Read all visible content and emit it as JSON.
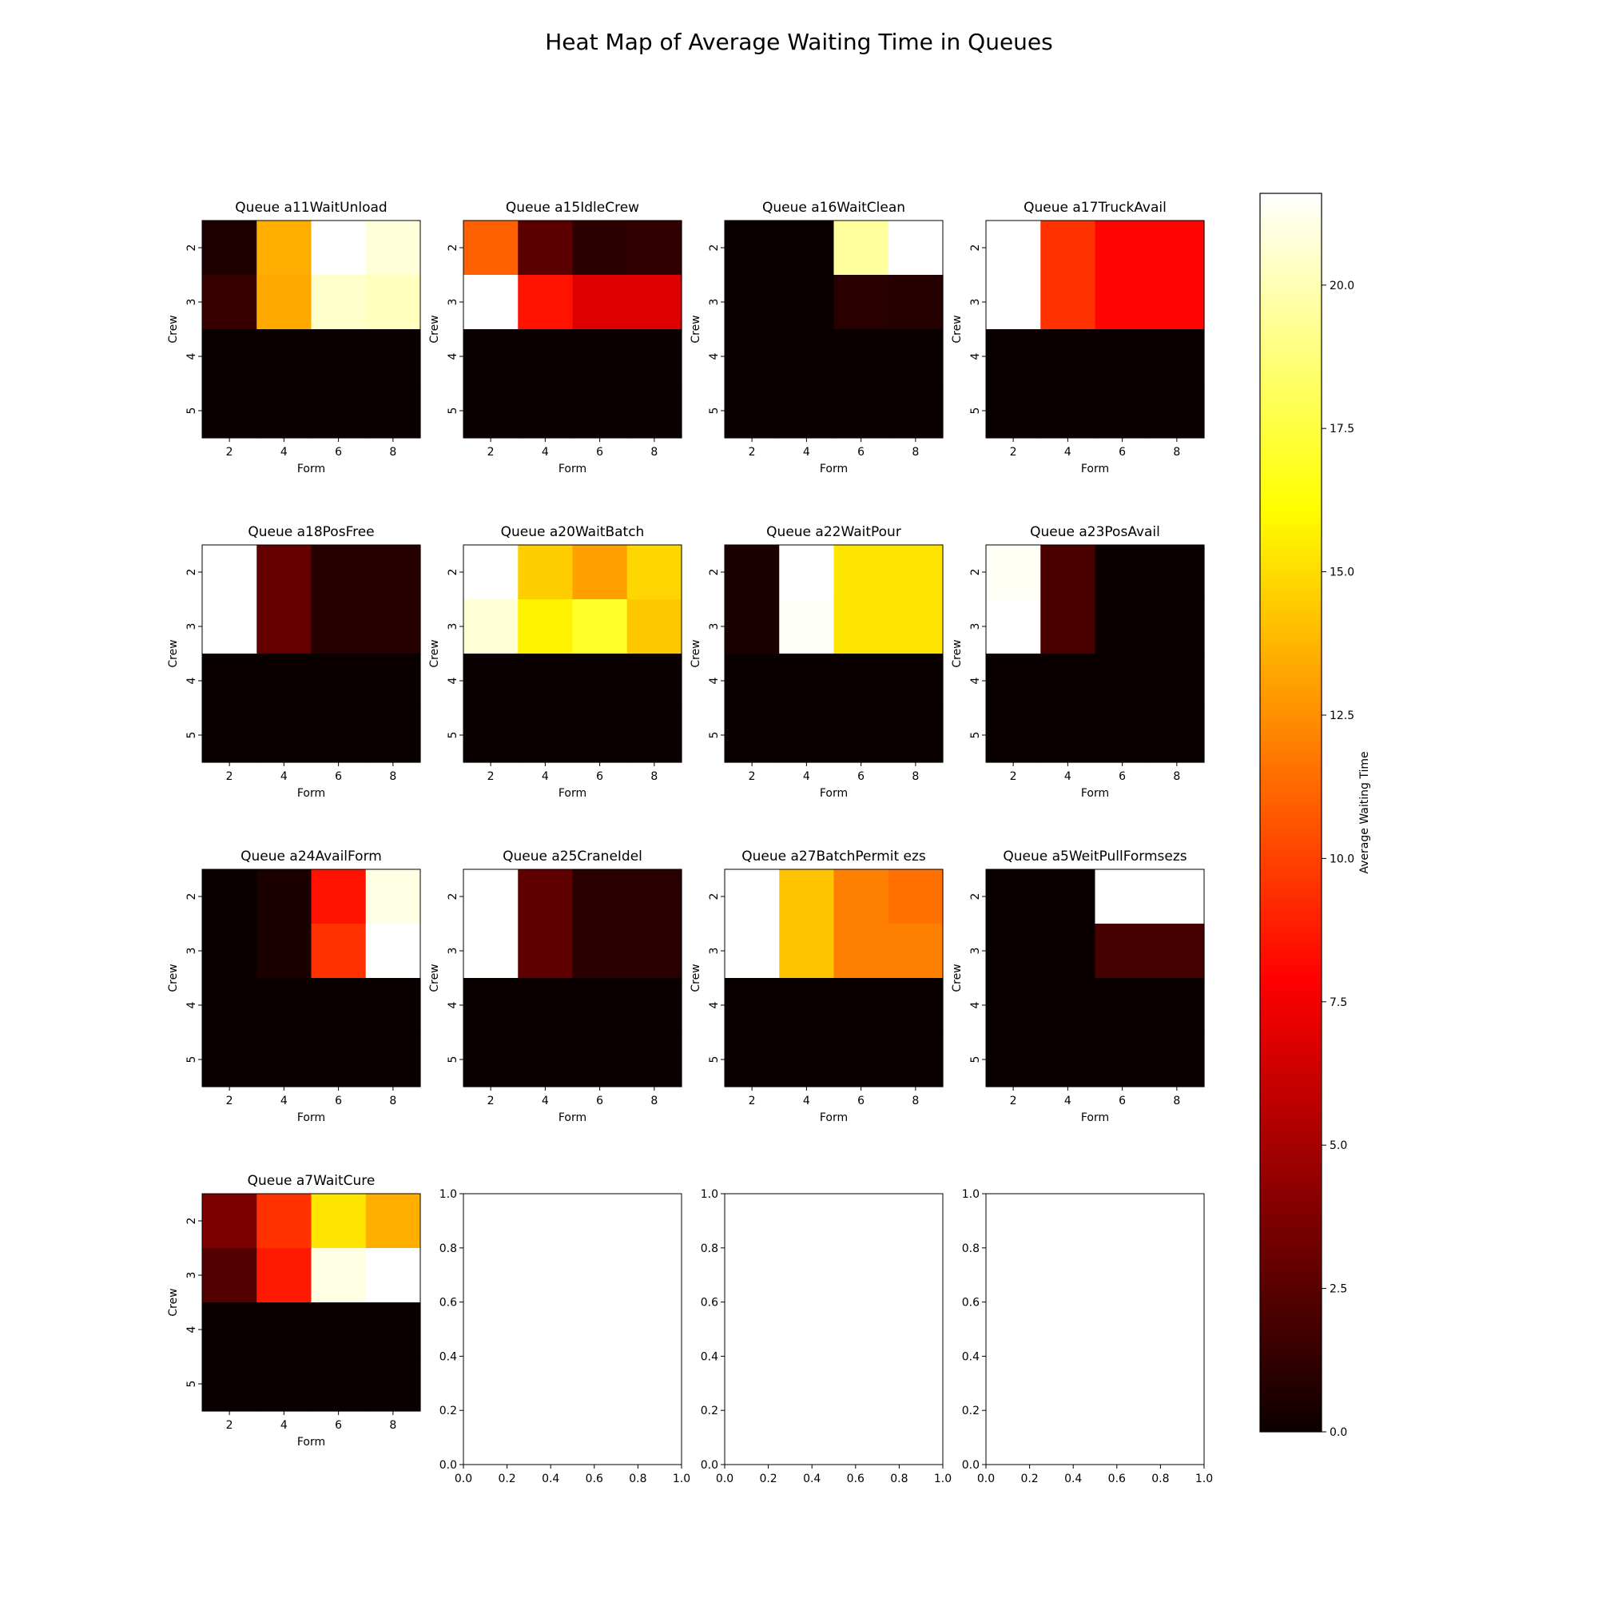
{
  "chart_data": {
    "type": "heatmap",
    "title": "Heat Map of Average Waiting Time in Queues",
    "xlabel": "Form",
    "ylabel": "Crew",
    "x_categories": [
      2,
      4,
      6,
      8
    ],
    "y_categories": [
      2,
      3,
      4,
      5
    ],
    "colormap": "hot",
    "vmin": 0,
    "vmax": 21.6,
    "colorbar": {
      "label": "Average Waiting Time",
      "ticks": [
        "0.0",
        "2.5",
        "5.0",
        "7.5",
        "10.0",
        "12.5",
        "15.0",
        "17.5",
        "20.0"
      ]
    },
    "panels": [
      {
        "title": "Queue a11WaitUnload",
        "values": [
          [
            0.6,
            13.5,
            21.6,
            20.8
          ],
          [
            1.4,
            13.3,
            20.5,
            20.2
          ],
          [
            0,
            0,
            0,
            0
          ],
          [
            0,
            0,
            0,
            0
          ]
        ]
      },
      {
        "title": "Queue a15IdleCrew",
        "values": [
          [
            11.0,
            2.5,
            1.0,
            1.2
          ],
          [
            21.6,
            8.5,
            6.5,
            6.5
          ],
          [
            0,
            0,
            0,
            0
          ],
          [
            0,
            0,
            0,
            0
          ]
        ]
      },
      {
        "title": "Queue a16WaitClean",
        "values": [
          [
            0,
            0,
            19.5,
            21.6
          ],
          [
            0,
            0,
            0.9,
            0.8
          ],
          [
            0,
            0,
            0,
            0
          ],
          [
            0,
            0,
            0,
            0
          ]
        ]
      },
      {
        "title": "Queue a17TruckAvail",
        "values": [
          [
            21.6,
            9.5,
            8.0,
            8.0
          ],
          [
            21.6,
            9.5,
            8.0,
            8.0
          ],
          [
            0,
            0,
            0,
            0
          ],
          [
            0,
            0,
            0,
            0
          ]
        ]
      },
      {
        "title": "Queue a18PosFree",
        "values": [
          [
            21.6,
            2.8,
            0.8,
            0.8
          ],
          [
            21.6,
            2.8,
            0.8,
            0.8
          ],
          [
            0,
            0,
            0,
            0
          ],
          [
            0,
            0,
            0,
            0
          ]
        ]
      },
      {
        "title": "Queue a20WaitBatch",
        "values": [
          [
            21.6,
            14.5,
            13.0,
            14.8
          ],
          [
            20.7,
            15.7,
            17.0,
            14.3
          ],
          [
            0,
            0,
            0,
            0
          ],
          [
            0,
            0,
            0,
            0
          ]
        ]
      },
      {
        "title": "Queue a22WaitPour",
        "values": [
          [
            0.5,
            21.6,
            15.3,
            15.3
          ],
          [
            0.5,
            21.5,
            15.3,
            15.3
          ],
          [
            0,
            0,
            0,
            0
          ],
          [
            0,
            0,
            0,
            0
          ]
        ]
      },
      {
        "title": "Queue a23PosAvail",
        "values": [
          [
            21.4,
            2.0,
            0,
            0
          ],
          [
            21.6,
            2.0,
            0,
            0
          ],
          [
            0,
            0,
            0,
            0
          ],
          [
            0,
            0,
            0,
            0
          ]
        ]
      },
      {
        "title": "Queue a24AvailForm",
        "values": [
          [
            0,
            0.5,
            8.5,
            21.0
          ],
          [
            0,
            0.5,
            9.5,
            21.6
          ],
          [
            0,
            0,
            0,
            0
          ],
          [
            0,
            0,
            0,
            0
          ]
        ]
      },
      {
        "title": "Queue a25CraneIdel",
        "values": [
          [
            21.6,
            2.6,
            0.9,
            0.9
          ],
          [
            21.6,
            2.6,
            0.9,
            0.9
          ],
          [
            0,
            0,
            0,
            0
          ],
          [
            0,
            0,
            0,
            0
          ]
        ]
      },
      {
        "title": "Queue a27BatchPermit ezs",
        "values": [
          [
            21.6,
            14.2,
            12.0,
            11.5
          ],
          [
            21.6,
            14.2,
            12.0,
            12.0
          ],
          [
            0,
            0,
            0,
            0
          ],
          [
            0,
            0,
            0,
            0
          ]
        ]
      },
      {
        "title": "Queue a5WeitPullFormsezs",
        "values": [
          [
            0,
            0,
            21.6,
            21.6
          ],
          [
            0,
            0,
            1.8,
            1.8
          ],
          [
            0,
            0,
            0,
            0
          ],
          [
            0,
            0,
            0,
            0
          ]
        ]
      },
      {
        "title": "Queue a7WaitCure",
        "values": [
          [
            3.5,
            9.5,
            15.3,
            13.5
          ],
          [
            2.3,
            8.7,
            21.0,
            21.6
          ],
          [
            0,
            0,
            0,
            0
          ],
          [
            0,
            0,
            0,
            0
          ]
        ]
      }
    ],
    "empty_axes": {
      "count": 3,
      "xlim": [
        0,
        1
      ],
      "ylim": [
        0,
        1
      ],
      "ticks": [
        "0.0",
        "0.2",
        "0.4",
        "0.6",
        "0.8",
        "1.0"
      ]
    }
  }
}
